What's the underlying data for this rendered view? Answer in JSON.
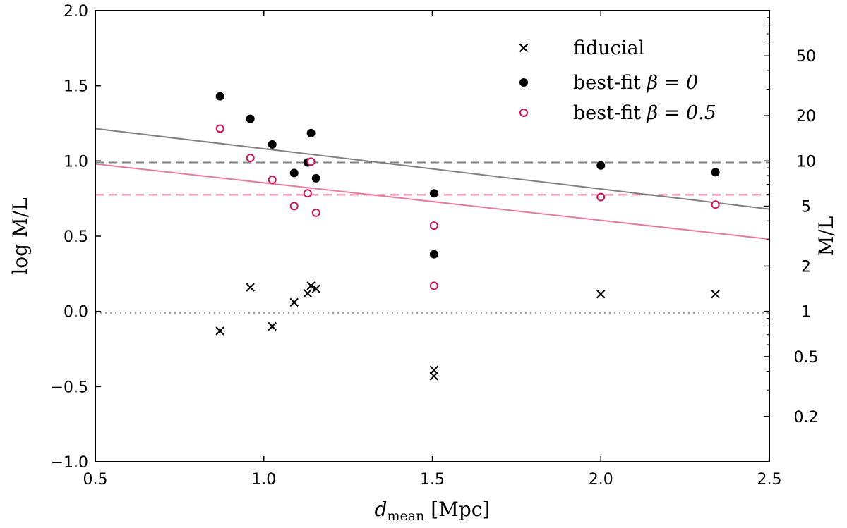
{
  "chart_data": {
    "type": "scatter",
    "xlabel": "d",
    "xlabel_subscript": "mean",
    "xlabel_unit": " [Mpc]",
    "ylabel": "log M/L",
    "ylabel_right": "M/L",
    "xlim": [
      0.5,
      2.5
    ],
    "ylim": [
      -1.0,
      2.0
    ],
    "x_ticks": [
      0.5,
      1.0,
      1.5,
      2.0,
      2.5
    ],
    "x_tick_labels": [
      "0.5",
      "1.0",
      "1.5",
      "2.0",
      "2.5"
    ],
    "y_ticks": [
      -1.0,
      -0.5,
      0.0,
      0.5,
      1.0,
      1.5,
      2.0
    ],
    "y_tick_labels": [
      "−1.0",
      "−0.5",
      "0.0",
      "0.5",
      "1.0",
      "1.5",
      "2.0"
    ],
    "right_ticks": [
      0.2,
      0.5,
      1,
      2,
      5,
      10,
      20,
      50
    ],
    "right_tick_labels": [
      "0.2",
      "0.5",
      "1",
      "2",
      "5",
      "10",
      "20",
      "50"
    ],
    "legend_position": "top-right",
    "series": [
      {
        "name": "fiducial",
        "marker": "x",
        "color": "#000000",
        "points": [
          [
            0.87,
            -0.13
          ],
          [
            0.96,
            0.16
          ],
          [
            1.025,
            -0.1
          ],
          [
            1.09,
            0.06
          ],
          [
            1.13,
            0.12
          ],
          [
            1.14,
            0.17
          ],
          [
            1.155,
            0.15
          ],
          [
            1.505,
            -0.39
          ],
          [
            1.505,
            -0.43
          ],
          [
            2.0,
            0.115
          ],
          [
            2.34,
            0.115
          ]
        ]
      },
      {
        "name": "best-fit β = 0",
        "legend_prefix": "best-fit ",
        "legend_math": "β = 0",
        "marker": "filled-circle",
        "color": "#000000",
        "points": [
          [
            0.87,
            1.43
          ],
          [
            0.96,
            1.28
          ],
          [
            1.025,
            1.11
          ],
          [
            1.09,
            0.92
          ],
          [
            1.13,
            0.99
          ],
          [
            1.14,
            1.185
          ],
          [
            1.155,
            0.885
          ],
          [
            1.505,
            0.785
          ],
          [
            1.505,
            0.38
          ],
          [
            2.0,
            0.97
          ],
          [
            2.34,
            0.925
          ]
        ]
      },
      {
        "name": "best-fit β = 0.5",
        "legend_prefix": "best-fit ",
        "legend_math": "β = 0.5",
        "marker": "open-circle",
        "color": "#cc1155",
        "points": [
          [
            0.87,
            1.215
          ],
          [
            0.96,
            1.02
          ],
          [
            1.025,
            0.875
          ],
          [
            1.09,
            0.7
          ],
          [
            1.13,
            0.785
          ],
          [
            1.14,
            0.995
          ],
          [
            1.155,
            0.655
          ],
          [
            1.505,
            0.57
          ],
          [
            1.505,
            0.17
          ],
          [
            2.0,
            0.76
          ],
          [
            2.34,
            0.71
          ]
        ]
      }
    ],
    "fit_lines": [
      {
        "color": "#808080",
        "points": [
          [
            0.5,
            1.215
          ],
          [
            2.5,
            0.68
          ]
        ]
      },
      {
        "color": "#e87aa0",
        "points": [
          [
            0.5,
            0.98
          ],
          [
            2.5,
            0.48
          ]
        ]
      }
    ],
    "hlines": [
      {
        "y": 0.99,
        "style": "dashed",
        "color": "#808080"
      },
      {
        "y": 0.775,
        "style": "dashed",
        "color": "#e87aa0"
      },
      {
        "y": -0.01,
        "style": "dotted",
        "color": "#999999"
      }
    ]
  }
}
